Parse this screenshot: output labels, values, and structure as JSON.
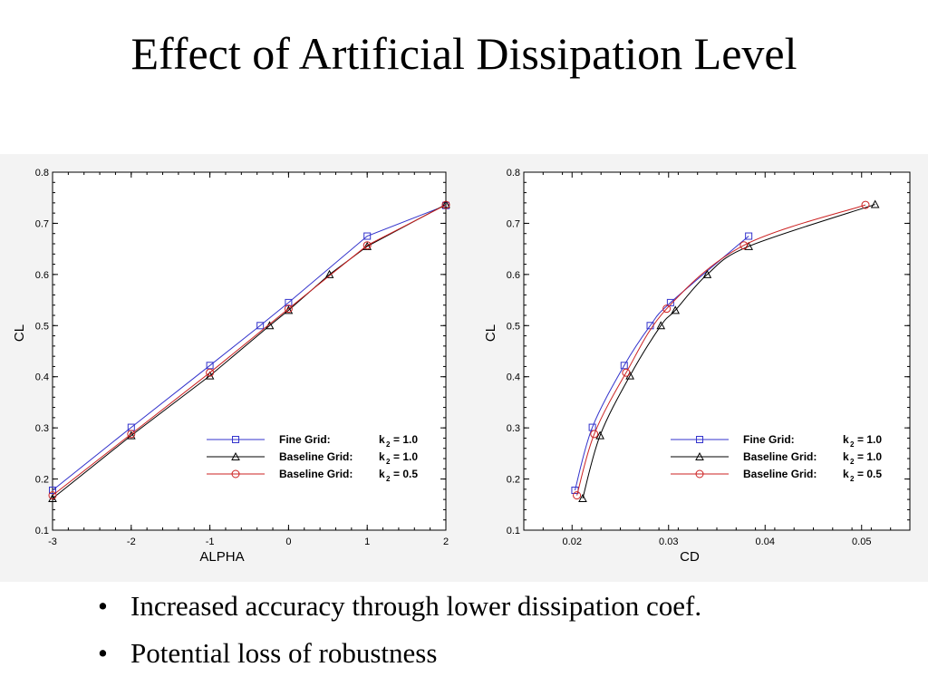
{
  "title": "Effect of Artificial Dissipation Level",
  "bullets": [
    {
      "marker": "•",
      "text": "Increased accuracy through lower dissipation coef."
    },
    {
      "marker": "•",
      "text": "Potential loss of robustness"
    }
  ],
  "chart_data": [
    {
      "type": "line",
      "xlabel": "ALPHA",
      "ylabel": "CL",
      "xlim": [
        -3,
        2
      ],
      "ylim": [
        0.1,
        0.8
      ],
      "xticks": [
        "-3",
        "-2",
        "-1",
        "0",
        "1",
        "2"
      ],
      "yticks": [
        "0.1",
        "0.2",
        "0.3",
        "0.4",
        "0.5",
        "0.6",
        "0.7",
        "0.8"
      ],
      "grid": false,
      "legend_position": "bottom-right",
      "series": [
        {
          "name": "Fine Grid:",
          "k_label": "k",
          "k_sub": "2",
          "k_value": "= 1.0",
          "color": "#3333cc",
          "marker": "square",
          "x": [
            -3,
            -2,
            -1,
            -0.36,
            0,
            1,
            2
          ],
          "y": [
            0.178,
            0.301,
            0.422,
            0.5,
            0.545,
            0.675,
            0.735
          ]
        },
        {
          "name": "Baseline Grid:",
          "k_label": "k",
          "k_sub": "2",
          "k_value": "= 1.0",
          "color": "#000000",
          "marker": "triangle",
          "x": [
            -3,
            -2,
            -1,
            -0.24,
            0,
            0.52,
            1,
            2
          ],
          "y": [
            0.162,
            0.285,
            0.402,
            0.5,
            0.53,
            0.6,
            0.655,
            0.737
          ]
        },
        {
          "name": "Baseline Grid:",
          "k_label": "k",
          "k_sub": "2",
          "k_value": "= 0.5",
          "color": "#cc2222",
          "marker": "circle",
          "x": [
            -3,
            -2,
            -1,
            0,
            1,
            2
          ],
          "y": [
            0.168,
            0.288,
            0.408,
            0.533,
            0.657,
            0.736
          ]
        }
      ]
    },
    {
      "type": "line",
      "xlabel": "CD",
      "ylabel": "CL",
      "xlim": [
        0.015,
        0.055
      ],
      "ylim": [
        0.1,
        0.8
      ],
      "xticks": [
        "0.02",
        "0.03",
        "0.04",
        "0.05"
      ],
      "yticks": [
        "0.1",
        "0.2",
        "0.3",
        "0.4",
        "0.5",
        "0.6",
        "0.7",
        "0.8"
      ],
      "grid": false,
      "legend_position": "bottom-right",
      "series": [
        {
          "name": "Fine Grid:",
          "k_label": "k",
          "k_sub": "2",
          "k_value": "= 1.0",
          "color": "#3333cc",
          "marker": "square",
          "x": [
            0.0203,
            0.0221,
            0.0254,
            0.0281,
            0.0302,
            0.0383
          ],
          "y": [
            0.178,
            0.301,
            0.422,
            0.5,
            0.545,
            0.675
          ]
        },
        {
          "name": "Baseline Grid:",
          "k_label": "k",
          "k_sub": "2",
          "k_value": "= 1.0",
          "color": "#000000",
          "marker": "triangle",
          "x": [
            0.0211,
            0.0229,
            0.026,
            0.0292,
            0.0307,
            0.034,
            0.0383,
            0.0514
          ],
          "y": [
            0.162,
            0.285,
            0.402,
            0.5,
            0.53,
            0.6,
            0.655,
            0.737
          ]
        },
        {
          "name": "Baseline Grid:",
          "k_label": "k",
          "k_sub": "2",
          "k_value": "= 0.5",
          "color": "#cc2222",
          "marker": "circle",
          "x": [
            0.0205,
            0.0223,
            0.0256,
            0.0298,
            0.0378,
            0.0504
          ],
          "y": [
            0.168,
            0.288,
            0.408,
            0.533,
            0.657,
            0.736
          ]
        }
      ]
    }
  ]
}
